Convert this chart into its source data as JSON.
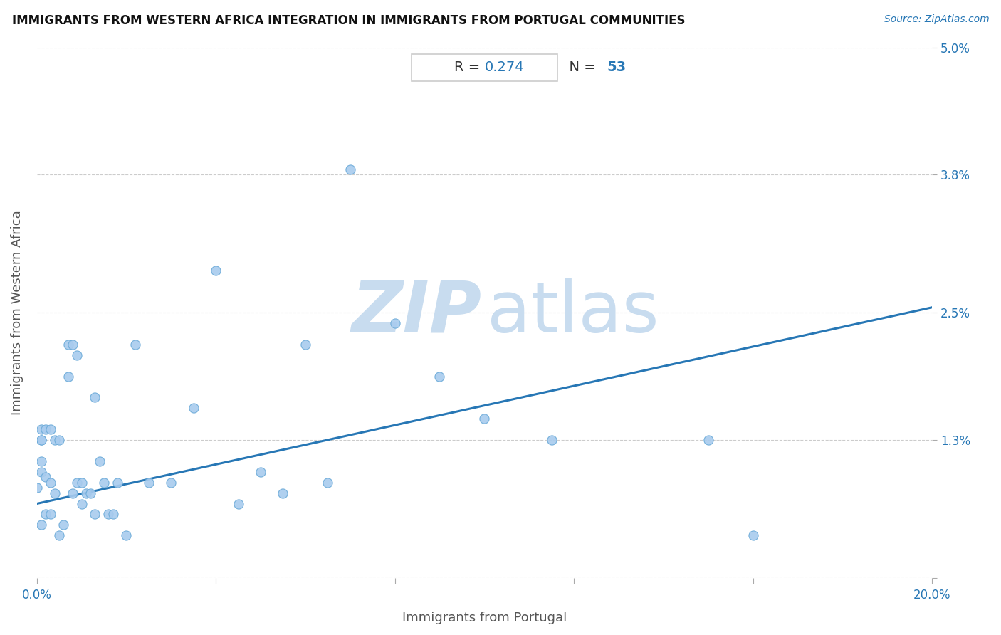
{
  "title": "IMMIGRANTS FROM WESTERN AFRICA INTEGRATION IN IMMIGRANTS FROM PORTUGAL COMMUNITIES",
  "source": "Source: ZipAtlas.com",
  "xlabel": "Immigrants from Portugal",
  "ylabel": "Immigrants from Western Africa",
  "R_label": "R = ",
  "R_value": "0.274",
  "N_label": "  N = ",
  "N_value": "53",
  "xlim": [
    0.0,
    0.2
  ],
  "ylim": [
    0.0,
    0.05
  ],
  "xtick_positions": [
    0.0,
    0.04,
    0.08,
    0.12,
    0.16,
    0.2
  ],
  "xtick_labels": [
    "0.0%",
    "",
    "",
    "",
    "",
    "20.0%"
  ],
  "ytick_positions": [
    0.0,
    0.013,
    0.025,
    0.038,
    0.05
  ],
  "ytick_labels": [
    "",
    "1.3%",
    "2.5%",
    "3.8%",
    "5.0%"
  ],
  "scatter_color": "#A8CBEE",
  "scatter_edgecolor": "#6AAAD8",
  "line_color": "#2777B5",
  "title_color": "#111111",
  "source_color": "#2777B5",
  "axis_label_color": "#555555",
  "tick_color": "#2777B5",
  "grid_color": "#CCCCCC",
  "annotation_box_edgecolor": "#CCCCCC",
  "annotation_text_color": "#333333",
  "annotation_value_color": "#2777B5",
  "watermark_color": "#C8DCEF",
  "points_x": [
    0.0,
    0.001,
    0.001,
    0.001,
    0.001,
    0.001,
    0.001,
    0.002,
    0.002,
    0.002,
    0.003,
    0.003,
    0.003,
    0.004,
    0.004,
    0.005,
    0.005,
    0.006,
    0.007,
    0.007,
    0.008,
    0.008,
    0.009,
    0.009,
    0.01,
    0.01,
    0.011,
    0.012,
    0.013,
    0.013,
    0.014,
    0.015,
    0.016,
    0.017,
    0.018,
    0.02,
    0.022,
    0.025,
    0.03,
    0.035,
    0.04,
    0.045,
    0.05,
    0.055,
    0.06,
    0.065,
    0.07,
    0.08,
    0.09,
    0.1,
    0.115,
    0.15,
    0.16
  ],
  "points_y": [
    0.0085,
    0.01,
    0.011,
    0.013,
    0.013,
    0.014,
    0.005,
    0.0095,
    0.014,
    0.006,
    0.014,
    0.009,
    0.006,
    0.013,
    0.008,
    0.013,
    0.004,
    0.005,
    0.022,
    0.019,
    0.022,
    0.008,
    0.021,
    0.009,
    0.009,
    0.007,
    0.008,
    0.008,
    0.017,
    0.006,
    0.011,
    0.009,
    0.006,
    0.006,
    0.009,
    0.004,
    0.022,
    0.009,
    0.009,
    0.016,
    0.029,
    0.007,
    0.01,
    0.008,
    0.022,
    0.009,
    0.0385,
    0.024,
    0.019,
    0.015,
    0.013,
    0.013,
    0.004
  ],
  "regression_x0": 0.0,
  "regression_y0": 0.007,
  "regression_x1": 0.2,
  "regression_y1": 0.0255
}
